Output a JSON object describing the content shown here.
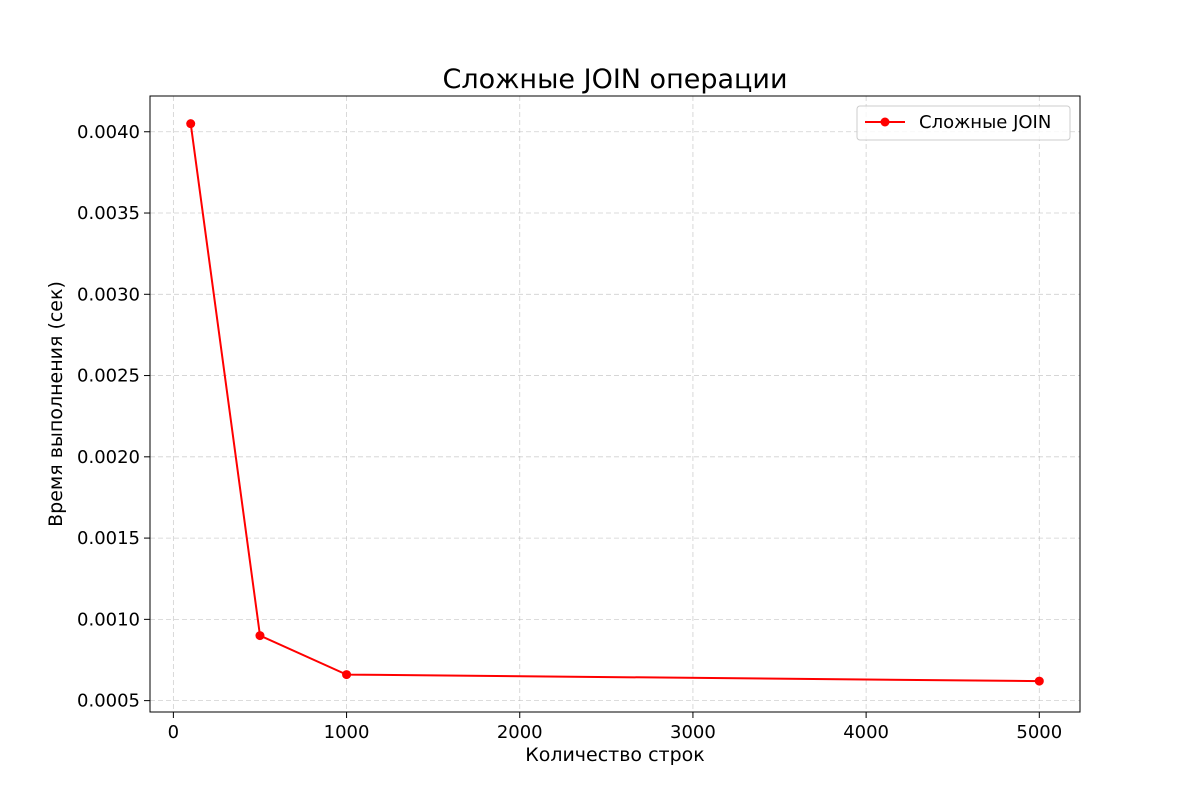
{
  "chart_data": {
    "type": "line",
    "title": "Сложные JOIN операции",
    "xlabel": "Количество строк",
    "ylabel": "Время выполнения (сек)",
    "x": [
      100,
      500,
      1000,
      5000
    ],
    "series": [
      {
        "name": "Сложные JOIN",
        "values": [
          0.00405,
          0.0009,
          0.00066,
          0.00062
        ],
        "color": "#ff0000",
        "marker": "circle"
      }
    ],
    "xlim": [
      -135,
      5235
    ],
    "ylim": [
      0.00043,
      0.00422
    ],
    "x_ticks": [
      0,
      1000,
      2000,
      3000,
      4000,
      5000
    ],
    "x_tick_labels": [
      "0",
      "1000",
      "2000",
      "3000",
      "4000",
      "5000"
    ],
    "y_ticks": [
      0.0005,
      0.001,
      0.0015,
      0.002,
      0.0025,
      0.003,
      0.0035,
      0.004
    ],
    "y_tick_labels": [
      "0.0005",
      "0.0010",
      "0.0015",
      "0.0020",
      "0.0025",
      "0.0030",
      "0.0035",
      "0.0040"
    ],
    "grid": true,
    "grid_style": "dashed",
    "legend_position": "top-right"
  }
}
